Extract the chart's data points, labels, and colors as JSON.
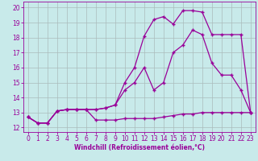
{
  "xlabel": "Windchill (Refroidissement éolien,°C)",
  "bg_color": "#c8eaea",
  "grid_color": "#aabbbb",
  "line_color": "#990099",
  "xlim_min": -0.5,
  "xlim_max": 23.5,
  "ylim_min": 11.7,
  "ylim_max": 20.4,
  "xticks": [
    0,
    1,
    2,
    3,
    4,
    5,
    6,
    7,
    8,
    9,
    10,
    11,
    12,
    13,
    14,
    15,
    16,
    17,
    18,
    19,
    20,
    21,
    22,
    23
  ],
  "yticks": [
    12,
    13,
    14,
    15,
    16,
    17,
    18,
    19,
    20
  ],
  "line1_x": [
    0,
    1,
    2,
    3,
    4,
    5,
    6,
    7,
    8,
    9,
    10,
    11,
    12,
    13,
    14,
    15,
    16,
    17,
    18,
    19,
    20,
    21,
    22,
    23
  ],
  "line1_y": [
    12.7,
    12.3,
    12.3,
    13.1,
    13.2,
    13.2,
    13.2,
    12.5,
    12.5,
    12.5,
    12.6,
    12.6,
    12.6,
    12.6,
    12.7,
    12.8,
    12.9,
    12.9,
    13.0,
    13.0,
    13.0,
    13.0,
    13.0,
    13.0
  ],
  "line2_x": [
    0,
    1,
    2,
    3,
    4,
    5,
    6,
    7,
    8,
    9,
    10,
    11,
    12,
    13,
    14,
    15,
    16,
    17,
    18,
    19,
    20,
    21,
    22,
    23
  ],
  "line2_y": [
    12.7,
    12.3,
    12.3,
    13.1,
    13.2,
    13.2,
    13.2,
    13.2,
    13.3,
    13.5,
    14.5,
    15.0,
    16.0,
    14.5,
    15.0,
    17.0,
    17.5,
    18.5,
    18.2,
    16.3,
    15.5,
    15.5,
    14.5,
    13.0
  ],
  "line3_x": [
    0,
    1,
    2,
    3,
    4,
    5,
    6,
    7,
    8,
    9,
    10,
    11,
    12,
    13,
    14,
    15,
    16,
    17,
    18,
    19,
    20,
    21,
    22,
    23
  ],
  "line3_y": [
    12.7,
    12.3,
    12.3,
    13.1,
    13.2,
    13.2,
    13.2,
    13.2,
    13.3,
    13.5,
    15.0,
    16.0,
    18.1,
    19.2,
    19.4,
    18.9,
    19.8,
    19.8,
    19.7,
    18.2,
    18.2,
    18.2,
    18.2,
    13.0
  ],
  "tick_fontsize": 5.5,
  "xlabel_fontsize": 5.5
}
